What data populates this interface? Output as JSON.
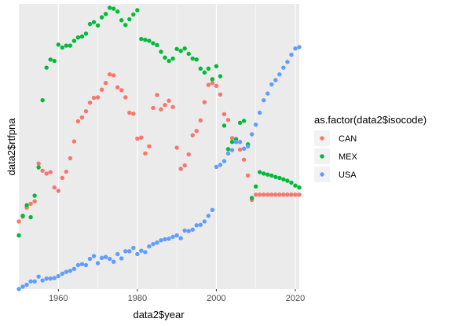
{
  "chart_data": {
    "type": "scatter",
    "xlabel": "data2$year",
    "ylabel": "data2$rtfpna",
    "xlim": [
      1950,
      2021
    ],
    "ylim": [
      0.585,
      1.18
    ],
    "x_ticks": [
      1960,
      1980,
      2000,
      2020
    ],
    "x_tick_labels": [
      "1960",
      "1980",
      "2000",
      "2020"
    ],
    "y_ticks": [],
    "grid": true,
    "legend_position": "right",
    "legend_title": "as.factor(data2$isocode)",
    "series": [
      {
        "name": "CAN",
        "color": "#F8766D",
        "points": [
          [
            1950,
            0.726
          ],
          [
            1951,
            0.736
          ],
          [
            1952,
            0.755
          ],
          [
            1953,
            0.763
          ],
          [
            1954,
            0.768
          ],
          [
            1955,
            0.847
          ],
          [
            1956,
            0.832
          ],
          [
            1957,
            0.826
          ],
          [
            1958,
            0.829
          ],
          [
            1959,
            0.797
          ],
          [
            1960,
            0.79
          ],
          [
            1961,
            0.817
          ],
          [
            1962,
            0.83
          ],
          [
            1963,
            0.858
          ],
          [
            1964,
            0.893
          ],
          [
            1965,
            0.935
          ],
          [
            1966,
            0.943
          ],
          [
            1967,
            0.956
          ],
          [
            1968,
            0.974
          ],
          [
            1969,
            0.984
          ],
          [
            1970,
            0.985
          ],
          [
            1971,
            1.001
          ],
          [
            1972,
            1.015
          ],
          [
            1973,
            1.033
          ],
          [
            1974,
            1.031
          ],
          [
            1975,
            1.006
          ],
          [
            1976,
            1.0
          ],
          [
            1977,
            0.985
          ],
          [
            1978,
            0.953
          ],
          [
            1979,
            0.951
          ],
          [
            1980,
            0.899
          ],
          [
            1981,
            0.901
          ],
          [
            1982,
            0.868
          ],
          [
            1983,
            0.883
          ],
          [
            1984,
            0.963
          ],
          [
            1985,
            0.99
          ],
          [
            1986,
            0.96
          ],
          [
            1987,
            0.969
          ],
          [
            1988,
            0.978
          ],
          [
            1989,
            0.965
          ],
          [
            1990,
            0.88
          ],
          [
            1991,
            0.836
          ],
          [
            1992,
            0.843
          ],
          [
            1993,
            0.866
          ],
          [
            1994,
            0.906
          ],
          [
            1995,
            0.915
          ],
          [
            1996,
            0.937
          ],
          [
            1997,
            0.975
          ],
          [
            1998,
            1.011
          ],
          [
            1999,
            1.015
          ],
          [
            2000,
            1.009
          ],
          [
            2001,
            0.991
          ],
          [
            2002,
            0.95
          ],
          [
            2003,
            0.938
          ],
          [
            2004,
            0.9
          ],
          [
            2005,
            0.892
          ],
          [
            2006,
            0.876
          ],
          [
            2007,
            0.855
          ],
          [
            2008,
            0.822
          ],
          [
            2009,
            0.771
          ],
          [
            2010,
            0.782
          ],
          [
            2011,
            0.782
          ],
          [
            2012,
            0.782
          ],
          [
            2013,
            0.782
          ],
          [
            2014,
            0.782
          ],
          [
            2015,
            0.782
          ],
          [
            2016,
            0.782
          ],
          [
            2017,
            0.782
          ],
          [
            2018,
            0.782
          ],
          [
            2019,
            0.782
          ],
          [
            2020,
            0.782
          ],
          [
            2021,
            0.782
          ]
        ]
      },
      {
        "name": "MEX",
        "color": "#00BA38",
        "points": [
          [
            1950,
            0.697
          ],
          [
            1951,
            0.738
          ],
          [
            1952,
            0.76
          ],
          [
            1953,
            0.735
          ],
          [
            1954,
            0.78
          ],
          [
            1955,
            0.839
          ],
          [
            1956,
            0.979
          ],
          [
            1957,
            1.047
          ],
          [
            1958,
            1.064
          ],
          [
            1959,
            1.061
          ],
          [
            1960,
            1.095
          ],
          [
            1961,
            1.089
          ],
          [
            1962,
            1.093
          ],
          [
            1963,
            1.093
          ],
          [
            1964,
            1.103
          ],
          [
            1965,
            1.11
          ],
          [
            1966,
            1.112
          ],
          [
            1967,
            1.118
          ],
          [
            1968,
            1.138
          ],
          [
            1969,
            1.142
          ],
          [
            1970,
            1.135
          ],
          [
            1971,
            1.152
          ],
          [
            1972,
            1.159
          ],
          [
            1973,
            1.172
          ],
          [
            1974,
            1.17
          ],
          [
            1975,
            1.164
          ],
          [
            1976,
            1.146
          ],
          [
            1977,
            1.136
          ],
          [
            1978,
            1.148
          ],
          [
            1979,
            1.158
          ],
          [
            1980,
            1.167
          ],
          [
            1981,
            1.107
          ],
          [
            1982,
            1.105
          ],
          [
            1983,
            1.103
          ],
          [
            1984,
            1.098
          ],
          [
            1985,
            1.094
          ],
          [
            1986,
            1.08
          ],
          [
            1987,
            1.068
          ],
          [
            1988,
            1.061
          ],
          [
            1989,
            1.066
          ],
          [
            1990,
            1.086
          ],
          [
            1991,
            1.082
          ],
          [
            1992,
            1.087
          ],
          [
            1993,
            1.076
          ],
          [
            1994,
            1.066
          ],
          [
            1995,
            1.064
          ],
          [
            1996,
            1.045
          ],
          [
            1997,
            1.037
          ],
          [
            1998,
            1.045
          ],
          [
            1999,
            1.023
          ],
          [
            2000,
            1.05
          ],
          [
            2001,
            1.029
          ],
          [
            2002,
            0.926
          ],
          [
            2003,
            0.877
          ],
          [
            2004,
            0.892
          ],
          [
            2005,
            0.898
          ],
          [
            2006,
            0.932
          ],
          [
            2007,
            0.936
          ],
          [
            2008,
            0.887
          ],
          [
            2009,
            0.775
          ],
          [
            2010,
            0.799
          ],
          [
            2011,
            0.829
          ],
          [
            2012,
            0.826
          ],
          [
            2013,
            0.824
          ],
          [
            2014,
            0.822
          ],
          [
            2015,
            0.819
          ],
          [
            2016,
            0.817
          ],
          [
            2017,
            0.814
          ],
          [
            2018,
            0.811
          ],
          [
            2019,
            0.807
          ],
          [
            2020,
            0.801
          ],
          [
            2021,
            0.797
          ]
        ]
      },
      {
        "name": "USA",
        "color": "#619CFF",
        "points": [
          [
            1950,
            0.585
          ],
          [
            1951,
            0.59
          ],
          [
            1952,
            0.594
          ],
          [
            1953,
            0.601
          ],
          [
            1954,
            0.601
          ],
          [
            1955,
            0.611
          ],
          [
            1956,
            0.603
          ],
          [
            1957,
            0.607
          ],
          [
            1958,
            0.607
          ],
          [
            1959,
            0.608
          ],
          [
            1960,
            0.612
          ],
          [
            1961,
            0.617
          ],
          [
            1962,
            0.621
          ],
          [
            1963,
            0.623
          ],
          [
            1964,
            0.627
          ],
          [
            1965,
            0.635
          ],
          [
            1966,
            0.637
          ],
          [
            1967,
            0.635
          ],
          [
            1968,
            0.648
          ],
          [
            1969,
            0.654
          ],
          [
            1970,
            0.639
          ],
          [
            1971,
            0.65
          ],
          [
            1972,
            0.652
          ],
          [
            1973,
            0.648
          ],
          [
            1974,
            0.642
          ],
          [
            1975,
            0.658
          ],
          [
            1976,
            0.649
          ],
          [
            1977,
            0.664
          ],
          [
            1978,
            0.664
          ],
          [
            1979,
            0.671
          ],
          [
            1980,
            0.658
          ],
          [
            1981,
            0.665
          ],
          [
            1982,
            0.662
          ],
          [
            1983,
            0.674
          ],
          [
            1984,
            0.679
          ],
          [
            1985,
            0.682
          ],
          [
            1986,
            0.687
          ],
          [
            1987,
            0.689
          ],
          [
            1988,
            0.69
          ],
          [
            1989,
            0.694
          ],
          [
            1990,
            0.697
          ],
          [
            1991,
            0.691
          ],
          [
            1992,
            0.707
          ],
          [
            1993,
            0.706
          ],
          [
            1994,
            0.709
          ],
          [
            1995,
            0.718
          ],
          [
            1996,
            0.719
          ],
          [
            1997,
            0.726
          ],
          [
            1998,
            0.738
          ],
          [
            1999,
            0.75
          ],
          [
            2000,
            0.84
          ],
          [
            2001,
            0.844
          ],
          [
            2002,
            0.852
          ],
          [
            2003,
            0.868
          ],
          [
            2004,
            0.875
          ],
          [
            2005,
            0.892
          ],
          [
            2006,
            0.892
          ],
          [
            2007,
            0.878
          ],
          [
            2008,
            0.883
          ],
          [
            2009,
            0.908
          ],
          [
            2010,
            0.928
          ],
          [
            2011,
            0.953
          ],
          [
            2012,
            0.979
          ],
          [
            2013,
            0.993
          ],
          [
            2014,
            1.012
          ],
          [
            2015,
            1.021
          ],
          [
            2016,
            1.033
          ],
          [
            2017,
            1.047
          ],
          [
            2018,
            1.059
          ],
          [
            2019,
            1.074
          ],
          [
            2020,
            1.087
          ],
          [
            2021,
            1.09
          ]
        ]
      }
    ]
  }
}
